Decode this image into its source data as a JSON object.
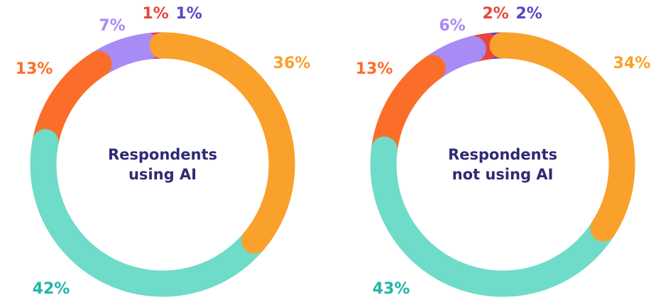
{
  "chart_data": [
    {
      "type": "donut",
      "title": "Respondents using AI",
      "values": [
        36,
        42,
        13,
        7,
        1,
        1
      ],
      "value_labels": [
        "36%",
        "42%",
        "13%",
        "7%",
        "1%",
        "1%"
      ],
      "colors": [
        "#f9a12b",
        "#6fdbc9",
        "#fb6e2a",
        "#a98bf5",
        "#e8453c",
        "#5b45c3"
      ]
    },
    {
      "type": "donut",
      "title": "Respondents not using AI",
      "values": [
        34,
        43,
        13,
        6,
        2,
        2
      ],
      "value_labels": [
        "34%",
        "43%",
        "13%",
        "6%",
        "2%",
        "2%"
      ],
      "colors": [
        "#f9a12b",
        "#6fdbc9",
        "#fb6e2a",
        "#a98bf5",
        "#e8453c",
        "#5b45c3"
      ]
    }
  ]
}
